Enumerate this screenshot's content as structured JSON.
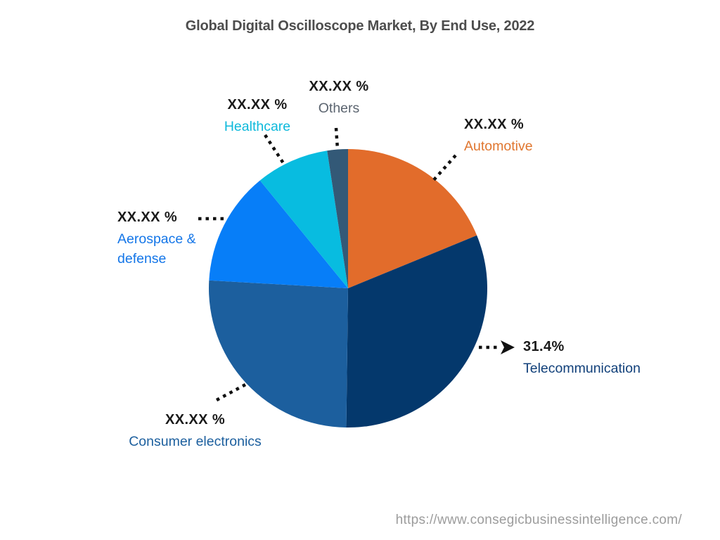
{
  "chart": {
    "title": "Global Digital Oscilloscope Market, By End Use, 2022",
    "source_url": "https://www.consegicbusinessintelligence.com/"
  },
  "chart_data": {
    "type": "pie",
    "title": "Global Digital Oscilloscope Market, By End Use, 2022",
    "unit": "percent market share",
    "start_angle_deg": 0,
    "direction": "clockwise",
    "legend_position": "outside-labels-with-dotted-leaders",
    "slices": [
      {
        "name": "Automotive",
        "display_value": "XX.XX %",
        "value_est_pct": 18.8,
        "color": "#E26C2B",
        "label_color": "#E0762F"
      },
      {
        "name": "Telecommunication",
        "display_value": "31.4%",
        "value_est_pct": 31.4,
        "color": "#04386C",
        "label_color": "#11407A"
      },
      {
        "name": "Consumer electronics",
        "display_value": "XX.XX %",
        "value_est_pct": 25.7,
        "color": "#1C5F9E",
        "label_color": "#1C5F9E"
      },
      {
        "name": "Aerospace & defense",
        "display_value": "XX.XX %",
        "value_est_pct": 13.2,
        "color": "#077EF8",
        "label_color": "#1476E8"
      },
      {
        "name": "Healthcare",
        "display_value": "XX.XX %",
        "value_est_pct": 8.5,
        "color": "#08BCE0",
        "label_color": "#0DB9DB"
      },
      {
        "name": "Others",
        "display_value": "XX.XX %",
        "value_est_pct": 2.4,
        "color": "#335977",
        "label_color": "#5C6570"
      }
    ]
  }
}
